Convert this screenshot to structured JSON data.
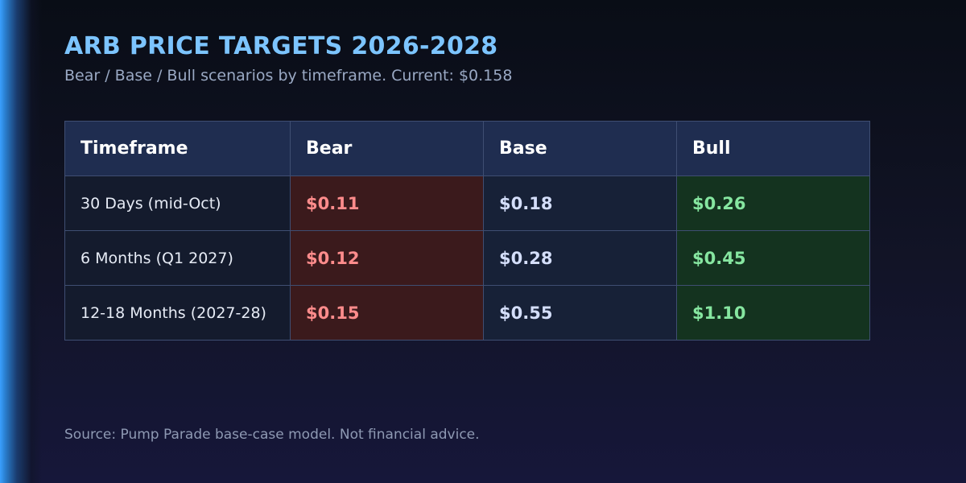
{
  "title": "ARB PRICE TARGETS 2026-2028",
  "subtitle": "Bear / Base / Bull scenarios by timeframe. Current: $0.158",
  "source": "Source: Pump Parade base-case model. Not financial advice.",
  "colors": {
    "title": "#7cc4ff",
    "accent_bar": "#3aa0ff",
    "header_bg": "#1f2d50",
    "bear_bg": "#3b1a1c",
    "bear_text": "#ff8c8c",
    "base_bg": "#172137",
    "base_text": "#d4defa",
    "bull_bg": "#14331f",
    "bull_text": "#86e6a0"
  },
  "chart_data": {
    "type": "table",
    "title": "ARB PRICE TARGETS 2026-2028",
    "subtitle": "Bear / Base / Bull scenarios by timeframe. Current: $0.158",
    "current_price": "$0.158",
    "columns": [
      "Timeframe",
      "Bear",
      "Base",
      "Bull"
    ],
    "rows": [
      {
        "timeframe": "30 Days (mid-Oct)",
        "bear": "$0.11",
        "base": "$0.18",
        "bull": "$0.26"
      },
      {
        "timeframe": "6 Months (Q1 2027)",
        "bear": "$0.12",
        "base": "$0.28",
        "bull": "$0.45"
      },
      {
        "timeframe": "12-18 Months (2027-28)",
        "bear": "$0.15",
        "base": "$0.55",
        "bull": "$1.10"
      }
    ],
    "series": [
      {
        "name": "Bear",
        "values": [
          0.11,
          0.12,
          0.15
        ]
      },
      {
        "name": "Base",
        "values": [
          0.18,
          0.28,
          0.55
        ]
      },
      {
        "name": "Bull",
        "values": [
          0.26,
          0.45,
          1.1
        ]
      }
    ],
    "categories": [
      "30 Days (mid-Oct)",
      "6 Months (Q1 2027)",
      "12-18 Months (2027-28)"
    ]
  }
}
